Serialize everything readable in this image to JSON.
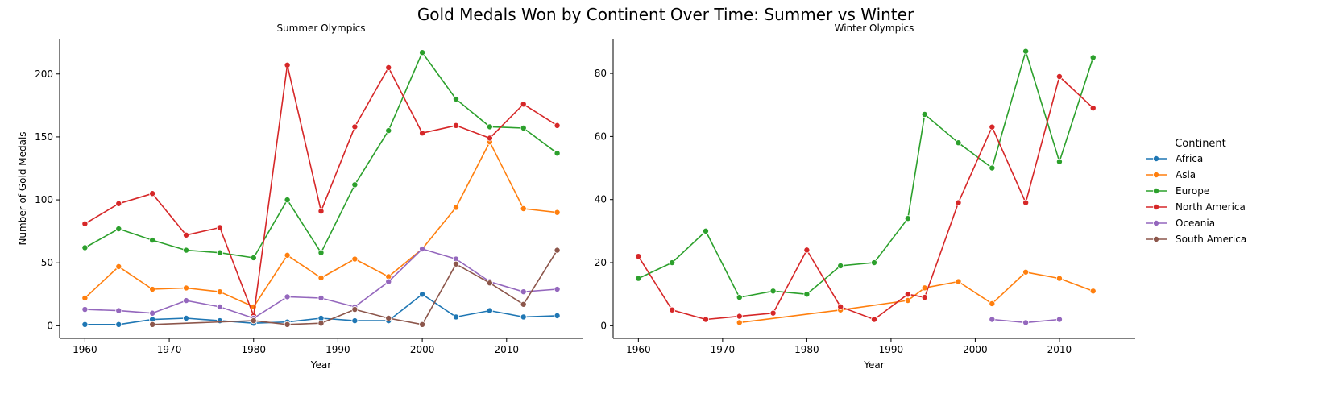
{
  "suptitle": "Gold Medals Won by Continent Over Time: Summer vs Winter",
  "legend": {
    "title": "Continent",
    "placement": "right"
  },
  "chart_data": [
    {
      "type": "line",
      "title": "Summer Olympics",
      "xlabel": "Year",
      "ylabel": "Number of Gold Medals",
      "xlim": [
        1957,
        2019
      ],
      "ylim": [
        -10,
        228
      ],
      "xticks": [
        "1960",
        "1970",
        "1980",
        "1990",
        "2000",
        "2010"
      ],
      "yticks": [
        "0",
        "50",
        "100",
        "150",
        "200"
      ],
      "series": [
        {
          "name": "Africa",
          "color": "#1f77b4",
          "x": [
            1960,
            1964,
            1968,
            1972,
            1976,
            1980,
            1984,
            1988,
            1992,
            1996,
            2000,
            2004,
            2008,
            2012,
            2016
          ],
          "y": [
            1,
            1,
            5,
            6,
            4,
            2,
            3,
            6,
            4,
            4,
            25,
            7,
            12,
            7,
            8
          ]
        },
        {
          "name": "Asia",
          "color": "#ff7f0e",
          "x": [
            1960,
            1964,
            1968,
            1972,
            1976,
            1980,
            1984,
            1988,
            1992,
            1996,
            2000,
            2004,
            2008,
            2012,
            2016
          ],
          "y": [
            22,
            47,
            29,
            30,
            27,
            15,
            56,
            38,
            53,
            39,
            61,
            94,
            146,
            93,
            90
          ]
        },
        {
          "name": "Europe",
          "color": "#2ca02c",
          "x": [
            1960,
            1964,
            1968,
            1972,
            1976,
            1980,
            1984,
            1988,
            1992,
            1996,
            2000,
            2004,
            2008,
            2012,
            2016
          ],
          "y": [
            62,
            77,
            68,
            60,
            58,
            54,
            100,
            58,
            112,
            155,
            217,
            180,
            158,
            157,
            137
          ]
        },
        {
          "name": "North America",
          "color": "#d62728",
          "x": [
            1960,
            1964,
            1968,
            1972,
            1976,
            1980,
            1984,
            1988,
            1992,
            1996,
            2000,
            2004,
            2008,
            2012,
            2016
          ],
          "y": [
            81,
            97,
            105,
            72,
            78,
            8,
            207,
            91,
            158,
            205,
            153,
            159,
            149,
            176,
            159
          ]
        },
        {
          "name": "Oceania",
          "color": "#9467bd",
          "x": [
            1960,
            1964,
            1968,
            1972,
            1976,
            1980,
            1984,
            1988,
            1992,
            1996,
            2000,
            2004,
            2008,
            2012,
            2016
          ],
          "y": [
            13,
            12,
            10,
            20,
            15,
            6,
            23,
            22,
            15,
            35,
            61,
            53,
            35,
            27,
            29
          ]
        },
        {
          "name": "South America",
          "color": "#8c564b",
          "x": [
            1968,
            1980,
            1984,
            1988,
            1992,
            1996,
            2000,
            2004,
            2008,
            2012,
            2016
          ],
          "y": [
            1,
            4,
            1,
            2,
            13,
            6,
            1,
            49,
            34,
            17,
            60
          ]
        }
      ]
    },
    {
      "type": "line",
      "title": "Winter Olympics",
      "xlabel": "Year",
      "ylabel": "",
      "xlim": [
        1957,
        2019
      ],
      "ylim": [
        -4,
        91
      ],
      "xticks": [
        "1960",
        "1970",
        "1980",
        "1990",
        "2000",
        "2010"
      ],
      "yticks": [
        "0",
        "20",
        "40",
        "60",
        "80"
      ],
      "series": [
        {
          "name": "Asia",
          "color": "#ff7f0e",
          "x": [
            1972,
            1984,
            1992,
            1994,
            1998,
            2002,
            2006,
            2010,
            2014
          ],
          "y": [
            1,
            5,
            8,
            12,
            14,
            7,
            17,
            15,
            11
          ]
        },
        {
          "name": "Europe",
          "color": "#2ca02c",
          "x": [
            1960,
            1964,
            1968,
            1972,
            1976,
            1980,
            1984,
            1988,
            1992,
            1994,
            1998,
            2002,
            2006,
            2010,
            2014
          ],
          "y": [
            15,
            20,
            30,
            9,
            11,
            10,
            19,
            20,
            34,
            67,
            58,
            50,
            87,
            52,
            85
          ]
        },
        {
          "name": "North America",
          "color": "#d62728",
          "x": [
            1960,
            1964,
            1968,
            1972,
            1976,
            1980,
            1984,
            1988,
            1992,
            1994,
            1998,
            2002,
            2006,
            2010,
            2014
          ],
          "y": [
            22,
            5,
            2,
            3,
            4,
            24,
            6,
            2,
            10,
            9,
            39,
            63,
            39,
            79,
            69
          ]
        },
        {
          "name": "Oceania",
          "color": "#9467bd",
          "x": [
            2002,
            2006,
            2010
          ],
          "y": [
            2,
            1,
            2
          ]
        }
      ]
    }
  ]
}
